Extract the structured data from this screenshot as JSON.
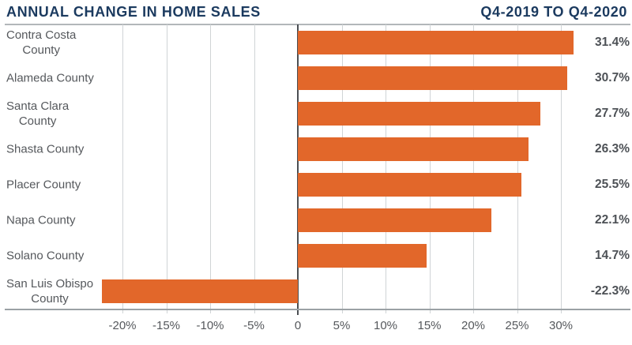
{
  "header": {
    "title": "ANNUAL CHANGE IN HOME SALES",
    "subtitle": "Q4-2019 TO Q4-2020"
  },
  "colors": {
    "bar": "#E2672A",
    "title_navy": "#1B3A5F",
    "grid_line": "#D0D4D6",
    "top_rule": "#B2B7BA",
    "axis_line": "#9BA1A5",
    "zero_line": "#4B4F53",
    "category_text": "#55585C",
    "value_text": "#4D5156",
    "tick_text": "#55585C"
  },
  "chart_data": {
    "type": "bar",
    "orientation": "horizontal",
    "title": "ANNUAL CHANGE IN HOME SALES",
    "subtitle": "Q4-2019 TO Q4-2020",
    "unit": "percent",
    "grid": true,
    "legend": "none",
    "xlim": [
      -25,
      33
    ],
    "categories": [
      "Contra Costa County",
      "Alameda County",
      "Santa Clara County",
      "Shasta County",
      "Placer County",
      "Napa County",
      "Solano County",
      "San Luis Obispo County"
    ],
    "category_lines": [
      [
        "Contra Costa",
        "County"
      ],
      [
        "Alameda County"
      ],
      [
        "Santa Clara",
        "County"
      ],
      [
        "Shasta County"
      ],
      [
        "Placer County"
      ],
      [
        "Napa County"
      ],
      [
        "Solano County"
      ],
      [
        "San Luis Obispo",
        "County"
      ]
    ],
    "values": [
      31.4,
      30.7,
      27.7,
      26.3,
      25.5,
      22.1,
      14.7,
      -22.3
    ],
    "value_labels": [
      "31.4%",
      "30.7%",
      "27.7%",
      "26.3%",
      "25.5%",
      "22.1%",
      "14.7%",
      "-22.3%"
    ],
    "x_ticks": [
      {
        "value": -20,
        "label": "-20%"
      },
      {
        "value": -15,
        "label": "-15%"
      },
      {
        "value": -10,
        "label": "-10%"
      },
      {
        "value": -5,
        "label": "-5%"
      },
      {
        "value": 0,
        "label": "0"
      },
      {
        "value": 5,
        "label": "5%"
      },
      {
        "value": 10,
        "label": "10%"
      },
      {
        "value": 15,
        "label": "15%"
      },
      {
        "value": 20,
        "label": "20%"
      },
      {
        "value": 25,
        "label": "25%"
      },
      {
        "value": 30,
        "label": "30%"
      }
    ]
  }
}
